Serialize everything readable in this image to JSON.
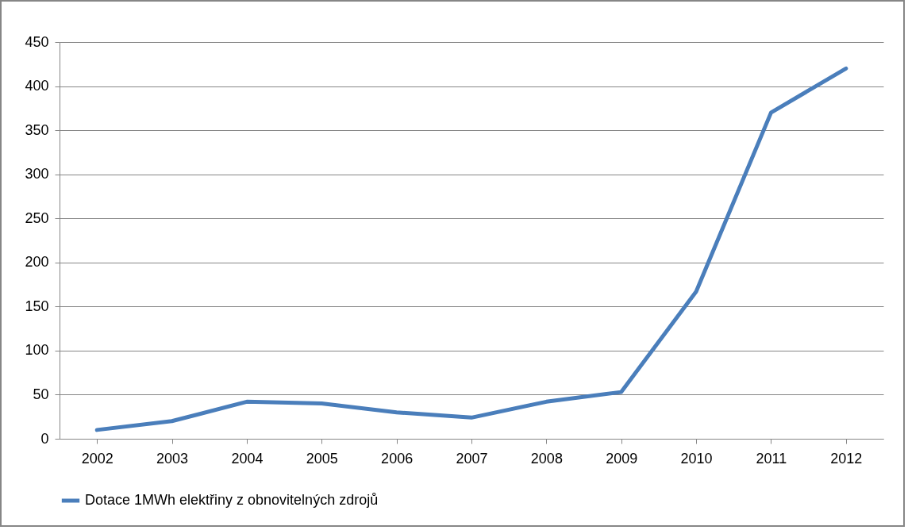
{
  "chart_data": {
    "type": "line",
    "categories": [
      "2002",
      "2003",
      "2004",
      "2005",
      "2006",
      "2007",
      "2008",
      "2009",
      "2010",
      "2011",
      "2012"
    ],
    "series": [
      {
        "name": "Dotace 1MWh elektřiny z obnovitelných zdrojů",
        "color": "#4a7ebb",
        "values": [
          10,
          20,
          42,
          40,
          30,
          24,
          42,
          53,
          167,
          370,
          420
        ]
      }
    ],
    "ylim": [
      0,
      450
    ],
    "yticks": [
      0,
      50,
      100,
      150,
      200,
      250,
      300,
      350,
      400,
      450
    ],
    "grid": "y",
    "legend": "bottom",
    "marker": "none",
    "line_style": "solid"
  }
}
